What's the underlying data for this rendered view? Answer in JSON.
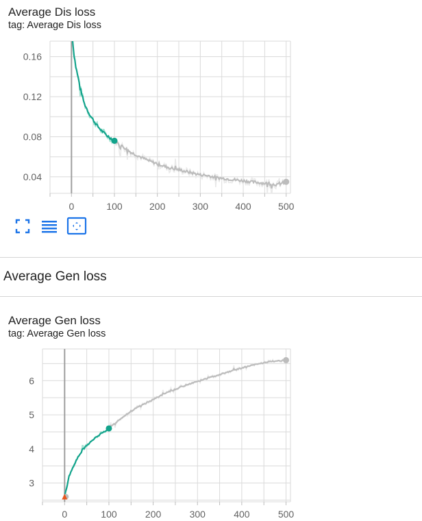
{
  "colors": {
    "smoothed_active": "#12a38b",
    "raw_active": "#9fe0cf",
    "smoothed_rest": "#bcbcbc",
    "raw_rest": "#e9e9e9",
    "grid": "#dadada",
    "cursor_line": "#9e9e9e",
    "toolbar_icon": "#1a73e8",
    "start_marker": "#e8551d"
  },
  "toolbar": {
    "buttons": [
      {
        "name": "fullscreen-icon",
        "label": "Toggle full size"
      },
      {
        "name": "log-scale-icon",
        "label": "Toggle log scale"
      },
      {
        "name": "fit-domain-icon",
        "label": "Fit domain to data"
      }
    ]
  },
  "section": {
    "header": "Average Gen loss"
  },
  "chart_data": [
    {
      "type": "line",
      "title": "Average Dis loss",
      "subtitle": "tag: Average Dis loss",
      "xlabel": "",
      "ylabel": "",
      "xlim": [
        -50,
        510
      ],
      "ylim": [
        0.0235,
        0.1755
      ],
      "x_ticks": [
        0,
        100,
        200,
        300,
        400,
        500
      ],
      "y_ticks": [
        0.04,
        0.08,
        0.12,
        0.16
      ],
      "y_tick_labels": [
        "0.04",
        "0.08",
        "0.12",
        "0.16"
      ],
      "grid": true,
      "cursor_x": 0,
      "highlight_until": 100,
      "series": [
        {
          "x": [
            0,
            5,
            10,
            15,
            20,
            25,
            30,
            40,
            50,
            60,
            70,
            80,
            90,
            100,
            110,
            120,
            130,
            140,
            150,
            160,
            170,
            180,
            200,
            220,
            240,
            260,
            280,
            300,
            320,
            340,
            360,
            380,
            400,
            420,
            440,
            460,
            480,
            500
          ],
          "values": [
            0.19,
            0.165,
            0.15,
            0.14,
            0.13,
            0.121,
            0.113,
            0.104,
            0.097,
            0.091,
            0.086,
            0.082,
            0.079,
            0.076,
            0.073,
            0.07,
            0.067,
            0.064,
            0.062,
            0.06,
            0.058,
            0.056,
            0.053,
            0.05,
            0.048,
            0.046,
            0.044,
            0.042,
            0.041,
            0.039,
            0.038,
            0.037,
            0.036,
            0.035,
            0.034,
            0.033,
            0.032,
            0.035
          ],
          "end_marker": true,
          "start_marker": false
        }
      ]
    },
    {
      "type": "line",
      "title": "Average Gen loss",
      "subtitle": "tag: Average Gen loss",
      "xlabel": "",
      "ylabel": "",
      "xlim": [
        -50,
        510
      ],
      "ylim": [
        2.45,
        6.93
      ],
      "x_ticks": [
        0,
        100,
        200,
        300,
        400,
        500
      ],
      "y_ticks": [
        3,
        4,
        5,
        6
      ],
      "y_tick_labels": [
        "3",
        "4",
        "5",
        "6"
      ],
      "grid": true,
      "cursor_x": 0,
      "highlight_until": 100,
      "series": [
        {
          "x": [
            0,
            5,
            10,
            20,
            30,
            40,
            50,
            60,
            70,
            80,
            90,
            100,
            120,
            140,
            160,
            180,
            200,
            220,
            240,
            260,
            280,
            300,
            320,
            340,
            360,
            380,
            400,
            420,
            440,
            460,
            480,
            500
          ],
          "values": [
            2.6,
            2.9,
            3.2,
            3.5,
            3.75,
            3.95,
            4.1,
            4.22,
            4.33,
            4.42,
            4.51,
            4.6,
            4.82,
            5.02,
            5.18,
            5.32,
            5.45,
            5.58,
            5.7,
            5.8,
            5.9,
            5.98,
            6.06,
            6.14,
            6.22,
            6.3,
            6.37,
            6.44,
            6.5,
            6.55,
            6.58,
            6.6
          ],
          "end_marker": true,
          "start_marker": true
        }
      ]
    }
  ]
}
